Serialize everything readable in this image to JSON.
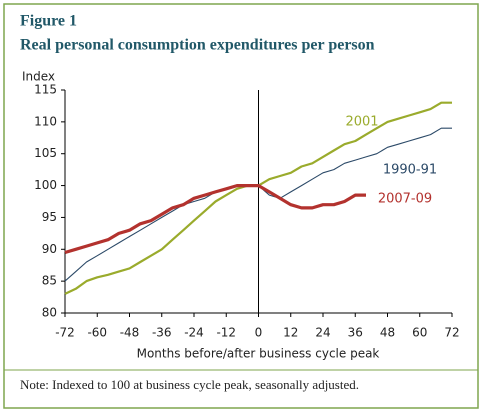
{
  "chart_data": {
    "type": "line",
    "title": "Figure 1",
    "subtitle": "Real personal consumption expenditures per person",
    "y_label": "Index",
    "x_label": "Months before/after business cycle peak",
    "note": "Note: Indexed to 100 at business cycle peak, seasonally adjusted.",
    "x": [
      -72,
      -68,
      -64,
      -60,
      -56,
      -52,
      -48,
      -44,
      -40,
      -36,
      -32,
      -28,
      -24,
      -20,
      -16,
      -12,
      -8,
      -4,
      0,
      4,
      8,
      12,
      16,
      20,
      24,
      28,
      32,
      36,
      40,
      44,
      48,
      52,
      56,
      60,
      64,
      68,
      72
    ],
    "series": [
      {
        "name": "2001",
        "color": "#9aab2c",
        "values": [
          83,
          83.8,
          85,
          85.6,
          86,
          86.5,
          87,
          88,
          89,
          90,
          91.5,
          93,
          94.5,
          96,
          97.5,
          98.5,
          99.5,
          100,
          100,
          101,
          101.5,
          102,
          103,
          103.5,
          104.5,
          105.5,
          106.5,
          107,
          108,
          109,
          110,
          110.5,
          111,
          111.5,
          112,
          113,
          113
        ]
      },
      {
        "name": "1990-91",
        "color": "#2c4a68",
        "values": [
          85,
          86.5,
          88,
          89,
          90,
          91,
          92,
          93,
          94,
          95,
          96,
          97,
          97.5,
          98,
          99,
          99.5,
          100,
          100,
          100,
          98.5,
          98,
          99,
          100,
          101,
          102,
          102.5,
          103.5,
          104,
          104.5,
          105,
          106,
          106.5,
          107,
          107.5,
          108,
          109,
          109
        ]
      },
      {
        "name": "2007-09",
        "color": "#b3322e",
        "values": [
          89.5,
          90,
          90.5,
          91,
          91.5,
          92.5,
          93,
          94,
          94.5,
          95.5,
          96.5,
          97,
          98,
          98.5,
          99,
          99.5,
          100,
          100,
          100,
          99,
          98,
          97,
          96.5,
          96.5,
          97,
          97,
          97.5,
          98.5,
          98.5,
          null,
          null,
          null,
          null,
          null,
          null,
          null,
          null
        ]
      }
    ],
    "xlim": [
      -72,
      72
    ],
    "xticks": [
      -72,
      -60,
      -48,
      -36,
      -24,
      -12,
      0,
      12,
      24,
      36,
      48,
      60,
      72
    ],
    "ylim": [
      80,
      115
    ],
    "yticks": [
      80,
      85,
      90,
      95,
      100,
      105,
      110,
      115
    ]
  }
}
